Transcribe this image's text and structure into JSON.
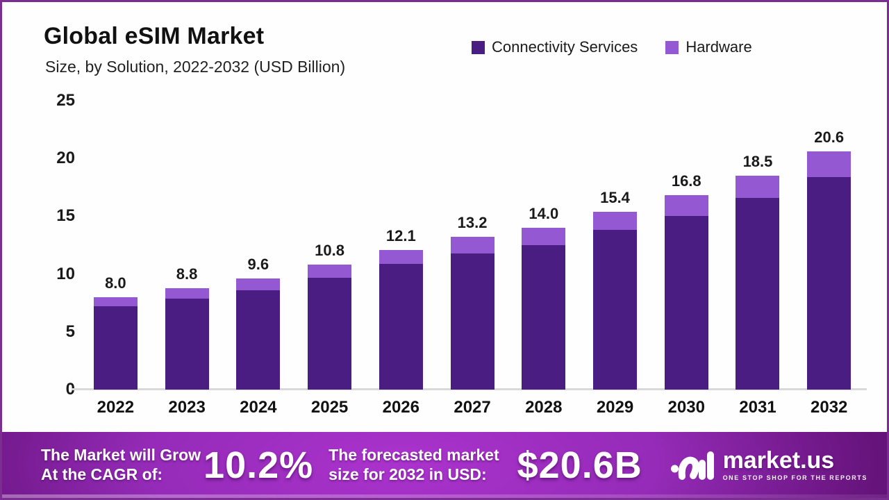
{
  "header": {
    "title": "Global eSIM Market",
    "subtitle": "Size, by Solution, 2022-2032 (USD Billion)"
  },
  "colors": {
    "connectivity_services": "#4a1d82",
    "hardware": "#9358d2",
    "frame_border": "#7b2d91",
    "banner_center": "#ab33cd",
    "banner_edge": "#541067",
    "axis_text": "#1a1a1a",
    "baseline_gray": "#d9d9d9"
  },
  "legend": {
    "items": [
      {
        "label": "Connectivity Services",
        "color": "#4a1d82"
      },
      {
        "label": "Hardware",
        "color": "#9358d2"
      }
    ]
  },
  "chart_data": {
    "type": "bar",
    "stacked": true,
    "title": "Global eSIM Market Size, by Solution, 2022-2032 (USD Billion)",
    "categories": [
      "2022",
      "2023",
      "2024",
      "2025",
      "2026",
      "2027",
      "2028",
      "2029",
      "2030",
      "2031",
      "2032"
    ],
    "series": [
      {
        "name": "Connectivity Services",
        "color": "#4a1d82",
        "values": [
          7.2,
          7.9,
          8.6,
          9.7,
          10.9,
          11.8,
          12.5,
          13.8,
          15.0,
          16.6,
          18.4
        ]
      },
      {
        "name": "Hardware",
        "color": "#9358d2",
        "values": [
          0.8,
          0.9,
          1.0,
          1.1,
          1.2,
          1.4,
          1.5,
          1.6,
          1.8,
          1.9,
          2.2
        ]
      }
    ],
    "totals": [
      8.0,
      8.8,
      9.6,
      10.8,
      12.1,
      13.2,
      14.0,
      15.4,
      16.8,
      18.5,
      20.6
    ],
    "total_labels": [
      "8.0",
      "8.8",
      "9.6",
      "10.8",
      "12.1",
      "13.2",
      "14.0",
      "15.4",
      "16.8",
      "18.5",
      "20.6"
    ],
    "xlabel": "",
    "ylabel": "",
    "ylim": [
      0,
      25
    ],
    "yticks": [
      0,
      5,
      10,
      15,
      20,
      25
    ],
    "grid": false,
    "legend_position": "top-right"
  },
  "banner": {
    "cagr_line1": "The Market will Grow",
    "cagr_line2": "At the CAGR of:",
    "cagr_value": "10.2%",
    "forecast_line1": "The forecasted market",
    "forecast_line2": "size for 2032 in USD:",
    "forecast_value": "$20.6B",
    "logo_name": "market.us",
    "logo_tagline": "ONE STOP SHOP FOR THE REPORTS"
  }
}
